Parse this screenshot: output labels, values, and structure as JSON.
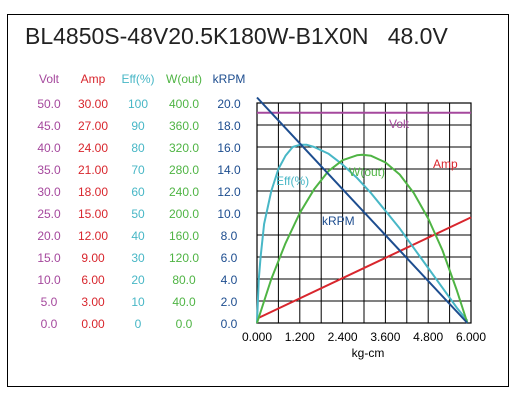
{
  "title": "BL4850S-48V20.5K180W-B1X0N   48.0V",
  "colors": {
    "volt": "#a5489d",
    "amp": "#d8262d",
    "eff": "#48b7c6",
    "wout": "#4fb444",
    "krpm": "#1d4d8f",
    "axis": "#000000",
    "grid": "#000000"
  },
  "chart_data": {
    "type": "line",
    "x_axis": {
      "label": "kg-cm",
      "range": [
        0,
        6
      ],
      "ticks": [
        "0.000",
        "1.200",
        "2.400",
        "3.600",
        "4.800",
        "6.000"
      ]
    },
    "y_axes": [
      {
        "name": "Volt",
        "range": [
          0,
          50
        ],
        "ticks": [
          "50.0",
          "45.0",
          "40.0",
          "35.0",
          "30.0",
          "25.0",
          "20.0",
          "15.0",
          "10.0",
          "5.0",
          "0.0"
        ]
      },
      {
        "name": "Amp",
        "range": [
          0,
          30
        ],
        "ticks": [
          "30.00",
          "27.00",
          "24.00",
          "21.00",
          "18.00",
          "15.00",
          "12.00",
          "9.00",
          "6.00",
          "3.00",
          "0.00"
        ]
      },
      {
        "name": "Eff(%)",
        "range": [
          0,
          100
        ],
        "ticks": [
          "100",
          "90",
          "80",
          "70",
          "60",
          "50",
          "40",
          "30",
          "20",
          "10",
          "0"
        ]
      },
      {
        "name": "W(out)",
        "range": [
          0,
          400
        ],
        "ticks": [
          "400.0",
          "360.0",
          "320.0",
          "280.0",
          "240.0",
          "200.0",
          "160.0",
          "120.0",
          "80.0",
          "40.0",
          "0.0"
        ]
      },
      {
        "name": "kRPM",
        "range": [
          0,
          20
        ],
        "ticks": [
          "20.0",
          "18.0",
          "16.0",
          "14.0",
          "12.0",
          "10.0",
          "8.0",
          "6.0",
          "4.0",
          "2.0",
          "0.0"
        ]
      }
    ],
    "grid": true,
    "series": [
      {
        "name": "Volt",
        "axis": "Volt",
        "x": [
          0,
          6
        ],
        "y": [
          47.8,
          47.8
        ]
      },
      {
        "name": "Amp",
        "axis": "Amp",
        "x": [
          0,
          6
        ],
        "y": [
          0.6,
          14.4
        ]
      },
      {
        "name": "Eff(%)",
        "axis": "Eff(%)",
        "x": [
          0,
          0.05,
          0.1,
          0.2,
          0.4,
          0.6,
          0.8,
          1.0,
          1.2,
          1.4,
          1.6,
          2.0,
          2.4,
          2.8,
          3.2,
          3.6,
          4.0,
          4.4,
          4.8,
          5.2,
          5.6,
          5.9
        ],
        "y": [
          0,
          20,
          30,
          45,
          60,
          70,
          76,
          80,
          81,
          81,
          80,
          77,
          72,
          66,
          59,
          51,
          43,
          34,
          25,
          16,
          7,
          1
        ]
      },
      {
        "name": "W(out)",
        "axis": "W(out)",
        "x": [
          0,
          0.4,
          0.8,
          1.2,
          1.6,
          2.0,
          2.4,
          2.8,
          2.95,
          3.2,
          3.6,
          4.0,
          4.4,
          4.8,
          5.2,
          5.6,
          5.9
        ],
        "y": [
          0,
          80,
          145,
          200,
          243,
          276,
          296,
          305,
          306,
          304,
          292,
          270,
          236,
          190,
          132,
          60,
          0
        ]
      },
      {
        "name": "kRPM",
        "axis": "kRPM",
        "x": [
          0,
          5.9
        ],
        "y": [
          20.5,
          0
        ]
      }
    ]
  }
}
